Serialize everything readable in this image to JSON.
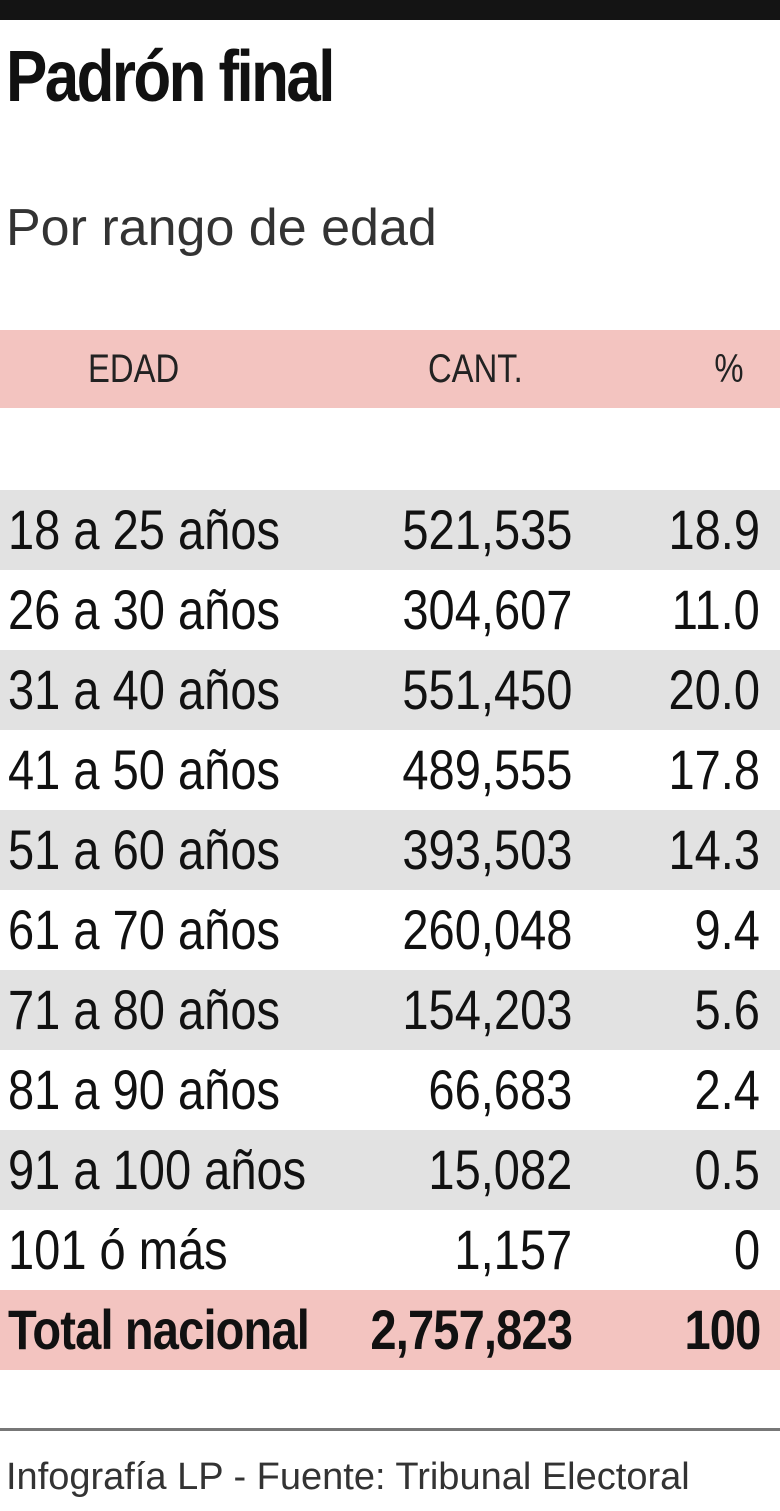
{
  "title": "Padrón final",
  "subtitle": "Por rango de edad",
  "colors": {
    "top_rule": "#141414",
    "header_bg": "#f3c4c0",
    "row_shade": "#e2e2e2",
    "total_bg": "#f3c4c0"
  },
  "chart_data": {
    "type": "table",
    "title": "Padrón final",
    "subtitle": "Por rango de edad",
    "columns": [
      "EDAD",
      "CANT.",
      "%"
    ],
    "rows": [
      {
        "edad": "18 a 25 años",
        "cant": "521,535",
        "pct": "18.9"
      },
      {
        "edad": "26 a 30 años",
        "cant": "304,607",
        "pct": "11.0"
      },
      {
        "edad": "31 a 40 años",
        "cant": "551,450",
        "pct": "20.0"
      },
      {
        "edad": "41 a 50 años",
        "cant": "489,555",
        "pct": "17.8"
      },
      {
        "edad": "51 a 60 años",
        "cant": "393,503",
        "pct": "14.3"
      },
      {
        "edad": "61 a 70 años",
        "cant": "260,048",
        "pct": "9.4"
      },
      {
        "edad": "71 a 80 años",
        "cant": "154,203",
        "pct": "5.6"
      },
      {
        "edad": "81 a 90 años",
        "cant": "66,683",
        "pct": "2.4"
      },
      {
        "edad": "91 a 100 años",
        "cant": "15,082",
        "pct": "0.5"
      },
      {
        "edad": "101 ó más",
        "cant": "1,157",
        "pct": "0"
      }
    ],
    "total": {
      "edad": "Total nacional",
      "cant": "2,757,823",
      "pct": "100"
    }
  },
  "footer": "Infografía LP  - Fuente: Tribunal Electoral"
}
